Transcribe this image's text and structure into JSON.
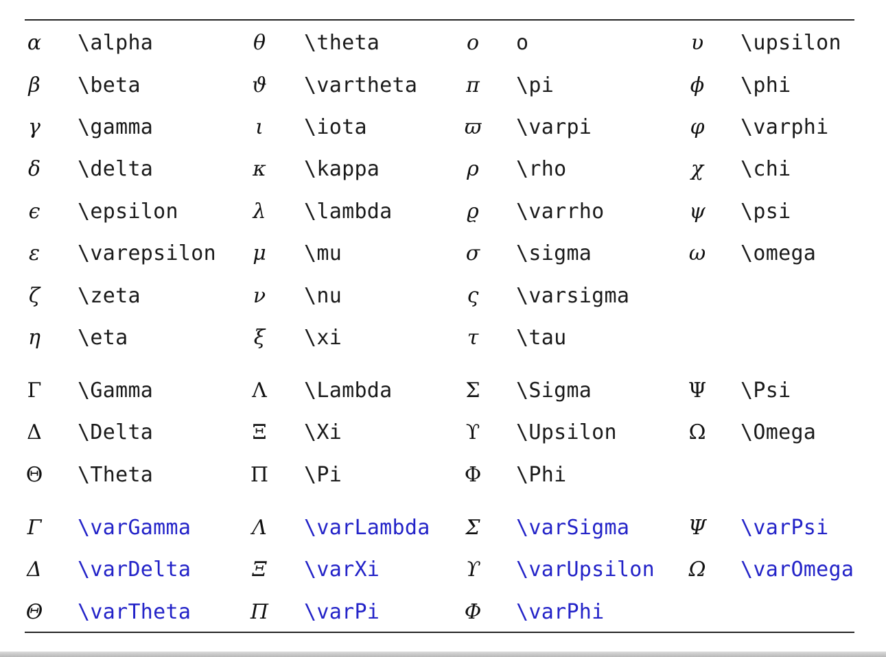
{
  "sections": [
    {
      "style": "lowercase",
      "rows": [
        [
          {
            "symbol": "α",
            "command": "\\alpha"
          },
          {
            "symbol": "θ",
            "command": "\\theta"
          },
          {
            "symbol": "o",
            "command": "o"
          },
          {
            "symbol": "υ",
            "command": "\\upsilon"
          }
        ],
        [
          {
            "symbol": "β",
            "command": "\\beta"
          },
          {
            "symbol": "ϑ",
            "command": "\\vartheta"
          },
          {
            "symbol": "π",
            "command": "\\pi"
          },
          {
            "symbol": "ϕ",
            "command": "\\phi"
          }
        ],
        [
          {
            "symbol": "γ",
            "command": "\\gamma"
          },
          {
            "symbol": "ι",
            "command": "\\iota"
          },
          {
            "symbol": "ϖ",
            "command": "\\varpi"
          },
          {
            "symbol": "φ",
            "command": "\\varphi"
          }
        ],
        [
          {
            "symbol": "δ",
            "command": "\\delta"
          },
          {
            "symbol": "κ",
            "command": "\\kappa"
          },
          {
            "symbol": "ρ",
            "command": "\\rho"
          },
          {
            "symbol": "χ",
            "command": "\\chi"
          }
        ],
        [
          {
            "symbol": "ϵ",
            "command": "\\epsilon"
          },
          {
            "symbol": "λ",
            "command": "\\lambda"
          },
          {
            "symbol": "ϱ",
            "command": "\\varrho"
          },
          {
            "symbol": "ψ",
            "command": "\\psi"
          }
        ],
        [
          {
            "symbol": "ε",
            "command": "\\varepsilon"
          },
          {
            "symbol": "μ",
            "command": "\\mu"
          },
          {
            "symbol": "σ",
            "command": "\\sigma"
          },
          {
            "symbol": "ω",
            "command": "\\omega"
          }
        ],
        [
          {
            "symbol": "ζ",
            "command": "\\zeta"
          },
          {
            "symbol": "ν",
            "command": "\\nu"
          },
          {
            "symbol": "ς",
            "command": "\\varsigma"
          },
          null
        ],
        [
          {
            "symbol": "η",
            "command": "\\eta"
          },
          {
            "symbol": "ξ",
            "command": "\\xi"
          },
          {
            "symbol": "τ",
            "command": "\\tau"
          },
          null
        ]
      ]
    },
    {
      "style": "uppercase",
      "rows": [
        [
          {
            "symbol": "Γ",
            "command": "\\Gamma"
          },
          {
            "symbol": "Λ",
            "command": "\\Lambda"
          },
          {
            "symbol": "Σ",
            "command": "\\Sigma"
          },
          {
            "symbol": "Ψ",
            "command": "\\Psi"
          }
        ],
        [
          {
            "symbol": "Δ",
            "command": "\\Delta"
          },
          {
            "symbol": "Ξ",
            "command": "\\Xi"
          },
          {
            "symbol": "ϒ",
            "command": "\\Upsilon"
          },
          {
            "symbol": "Ω",
            "command": "\\Omega"
          }
        ],
        [
          {
            "symbol": "Θ",
            "command": "\\Theta"
          },
          {
            "symbol": "Π",
            "command": "\\Pi"
          },
          {
            "symbol": "Φ",
            "command": "\\Phi"
          },
          null
        ]
      ]
    },
    {
      "style": "varuppercase",
      "rows": [
        [
          {
            "symbol": "Γ",
            "command": "\\varGamma"
          },
          {
            "symbol": "Λ",
            "command": "\\varLambda"
          },
          {
            "symbol": "Σ",
            "command": "\\varSigma"
          },
          {
            "symbol": "Ψ",
            "command": "\\varPsi"
          }
        ],
        [
          {
            "symbol": "Δ",
            "command": "\\varDelta"
          },
          {
            "symbol": "Ξ",
            "command": "\\varXi"
          },
          {
            "symbol": "ϒ",
            "command": "\\varUpsilon"
          },
          {
            "symbol": "Ω",
            "command": "\\varOmega"
          }
        ],
        [
          {
            "symbol": "Θ",
            "command": "\\varTheta"
          },
          {
            "symbol": "Π",
            "command": "\\varPi"
          },
          {
            "symbol": "Φ",
            "command": "\\varPhi"
          },
          null
        ]
      ]
    }
  ],
  "colors": {
    "text": "#1a1a1a",
    "var_command": "#2323c8",
    "rule": "#222222"
  }
}
